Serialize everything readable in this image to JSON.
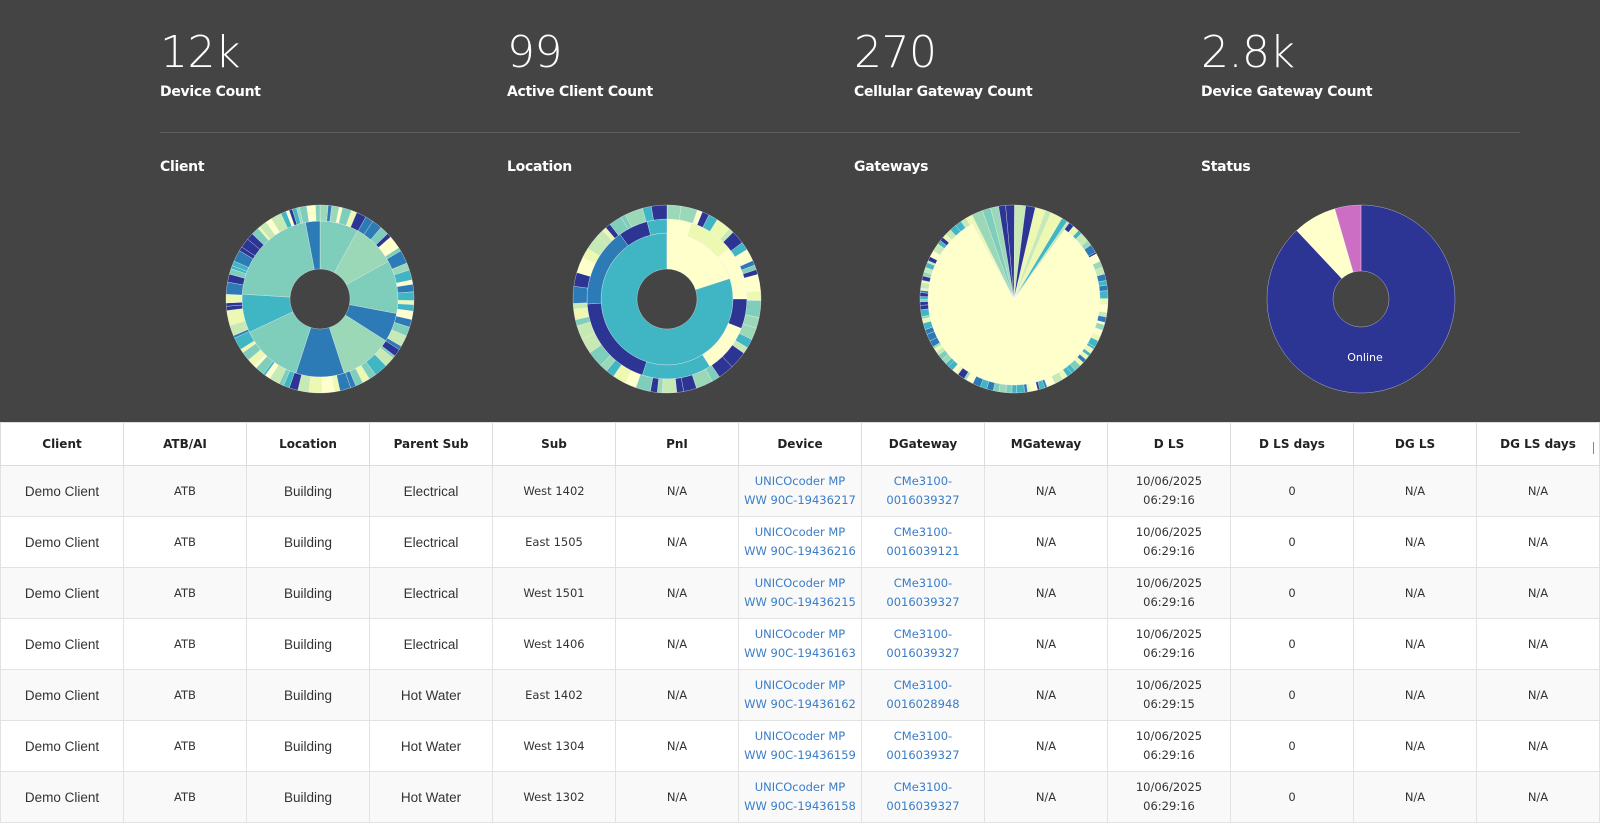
{
  "kpis": [
    {
      "value": "12k",
      "label": "Device Count"
    },
    {
      "value": "99",
      "label": "Active Client Count"
    },
    {
      "value": "270",
      "label": "Cellular Gateway Count"
    },
    {
      "value": "2.8k",
      "label": "Device Gateway Count"
    }
  ],
  "charts": [
    {
      "title": "Client"
    },
    {
      "title": "Location"
    },
    {
      "title": "Gateways"
    },
    {
      "title": "Status",
      "slice_label": "Online"
    }
  ],
  "palette": [
    "#2c3593",
    "#2d7bb6",
    "#40b5c4",
    "#7fcdbb",
    "#9ad8b8",
    "#c7e9b4",
    "#edf8b1",
    "#ffffcc",
    "#cc6fc4"
  ],
  "table": {
    "columns": [
      "Client",
      "ATB/AI",
      "Location",
      "Parent Sub",
      "Sub",
      "PnI",
      "Device",
      "DGateway",
      "MGateway",
      "D LS",
      "D LS days",
      "DG LS",
      "DG LS days"
    ],
    "rows": [
      [
        "Demo Client",
        "ATB",
        "Building",
        "Electrical",
        "West 1402",
        "N/A",
        "UNICOcoder MP WW 90C-19436217",
        "CMe3100-0016039327",
        "N/A",
        "10/06/2025 06:29:16",
        "0",
        "N/A",
        "N/A"
      ],
      [
        "Demo Client",
        "ATB",
        "Building",
        "Electrical",
        "East 1505",
        "N/A",
        "UNICOcoder MP WW 90C-19436216",
        "CMe3100-0016039121",
        "N/A",
        "10/06/2025 06:29:16",
        "0",
        "N/A",
        "N/A"
      ],
      [
        "Demo Client",
        "ATB",
        "Building",
        "Electrical",
        "West 1501",
        "N/A",
        "UNICOcoder MP WW 90C-19436215",
        "CMe3100-0016039327",
        "N/A",
        "10/06/2025 06:29:16",
        "0",
        "N/A",
        "N/A"
      ],
      [
        "Demo Client",
        "ATB",
        "Building",
        "Electrical",
        "West 1406",
        "N/A",
        "UNICOcoder MP WW 90C-19436163",
        "CMe3100-0016039327",
        "N/A",
        "10/06/2025 06:29:16",
        "0",
        "N/A",
        "N/A"
      ],
      [
        "Demo Client",
        "ATB",
        "Building",
        "Hot Water",
        "East 1402",
        "N/A",
        "UNICOcoder MP WW 90C-19436162",
        "CMe3100-0016028948",
        "N/A",
        "10/06/2025 06:29:15",
        "0",
        "N/A",
        "N/A"
      ],
      [
        "Demo Client",
        "ATB",
        "Building",
        "Hot Water",
        "West 1304",
        "N/A",
        "UNICOcoder MP WW 90C-19436159",
        "CMe3100-0016039327",
        "N/A",
        "10/06/2025 06:29:16",
        "0",
        "N/A",
        "N/A"
      ],
      [
        "Demo Client",
        "ATB",
        "Building",
        "Hot Water",
        "West 1302",
        "N/A",
        "UNICOcoder MP WW 90C-19436158",
        "CMe3100-0016039327",
        "N/A",
        "10/06/2025 06:29:16",
        "0",
        "N/A",
        "N/A"
      ]
    ]
  }
}
